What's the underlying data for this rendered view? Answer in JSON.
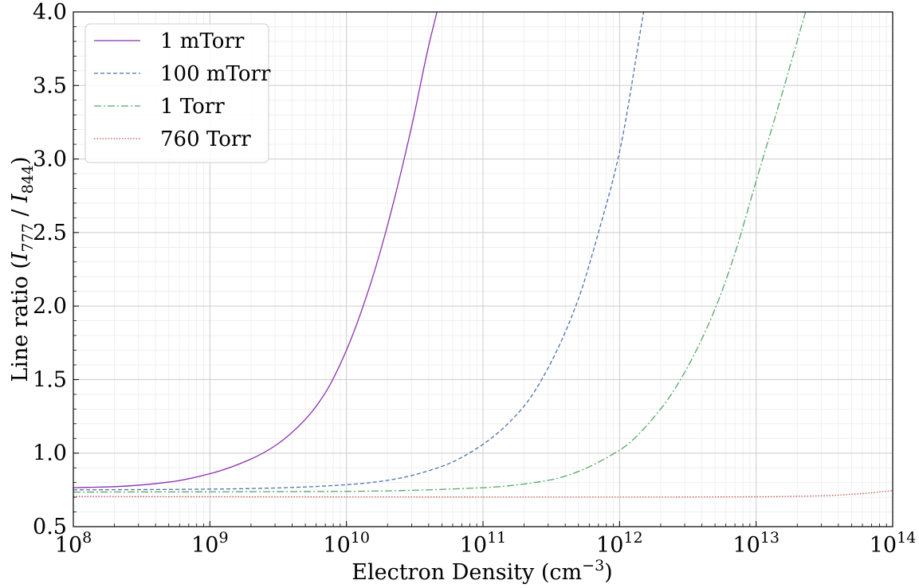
{
  "chart_data": {
    "type": "line",
    "title": "",
    "xlabel": {
      "main": "Electron Density (cm",
      "sup": "−3",
      "close": ")"
    },
    "ylabel": {
      "prefix": "Line ratio (",
      "i1": "I",
      "s1": "777",
      "mid": " / ",
      "i2": "I",
      "s2": "844",
      "close": ")"
    },
    "x_scale": "log",
    "xlim": [
      100000000.0,
      100000000000000.0
    ],
    "ylim": [
      0.5,
      4.0
    ],
    "grid": true,
    "legend_position": "top-left",
    "x_ticks": [
      {
        "exp": "8"
      },
      {
        "exp": "9"
      },
      {
        "exp": "10"
      },
      {
        "exp": "11"
      },
      {
        "exp": "12"
      },
      {
        "exp": "13"
      },
      {
        "exp": "14"
      }
    ],
    "y_ticks": [
      "0.5",
      "1.0",
      "1.5",
      "2.0",
      "2.5",
      "3.0",
      "3.5",
      "4.0"
    ],
    "series": [
      {
        "name": "1 mTorr",
        "color": "#8e2fb0",
        "dash": "",
        "x": [
          100000000.0,
          200000000.0,
          500000000.0,
          1000000000.0,
          2000000000.0,
          3000000000.0,
          5000000000.0,
          7000000000.0,
          10000000000.0,
          15000000000.0,
          20000000000.0,
          30000000000.0,
          40000000000.0,
          46000000000.0
        ],
        "y": [
          0.765,
          0.772,
          0.803,
          0.86,
          0.96,
          1.05,
          1.23,
          1.41,
          1.7,
          2.15,
          2.55,
          3.22,
          3.77,
          4.0
        ]
      },
      {
        "name": "100 mTorr",
        "color": "#4c72b0",
        "dash": "5,3",
        "x": [
          100000000.0,
          1000000000.0,
          3000000000.0,
          10000000000.0,
          20000000000.0,
          50000000000.0,
          100000000000.0,
          200000000000.0,
          300000000000.0,
          500000000000.0,
          700000000000.0,
          1000000000000.0,
          1500000000000.0
        ],
        "y": [
          0.75,
          0.755,
          0.763,
          0.785,
          0.815,
          0.91,
          1.06,
          1.32,
          1.58,
          2.05,
          2.5,
          3.05,
          4.0
        ]
      },
      {
        "name": "1 Torr",
        "color": "#55a868",
        "dash": "9,3,2,3",
        "x": [
          100000000.0,
          10000000000.0,
          100000000000.0,
          300000000000.0,
          1000000000000.0,
          2000000000000.0,
          3000000000000.0,
          5000000000000.0,
          7000000000000.0,
          10000000000000.0,
          15000000000000.0,
          23000000000000.0
        ],
        "y": [
          0.735,
          0.74,
          0.765,
          0.815,
          1.02,
          1.3,
          1.55,
          1.98,
          2.36,
          2.85,
          3.4,
          4.0
        ]
      },
      {
        "name": "760 Torr",
        "color": "#c44e52",
        "dash": "1.5,2",
        "x": [
          100000000.0,
          10000000000.0,
          1000000000000.0,
          10000000000000.0,
          30000000000000.0,
          60000000000000.0,
          100000000000000.0
        ],
        "y": [
          0.705,
          0.702,
          0.701,
          0.703,
          0.71,
          0.725,
          0.745
        ]
      }
    ]
  }
}
